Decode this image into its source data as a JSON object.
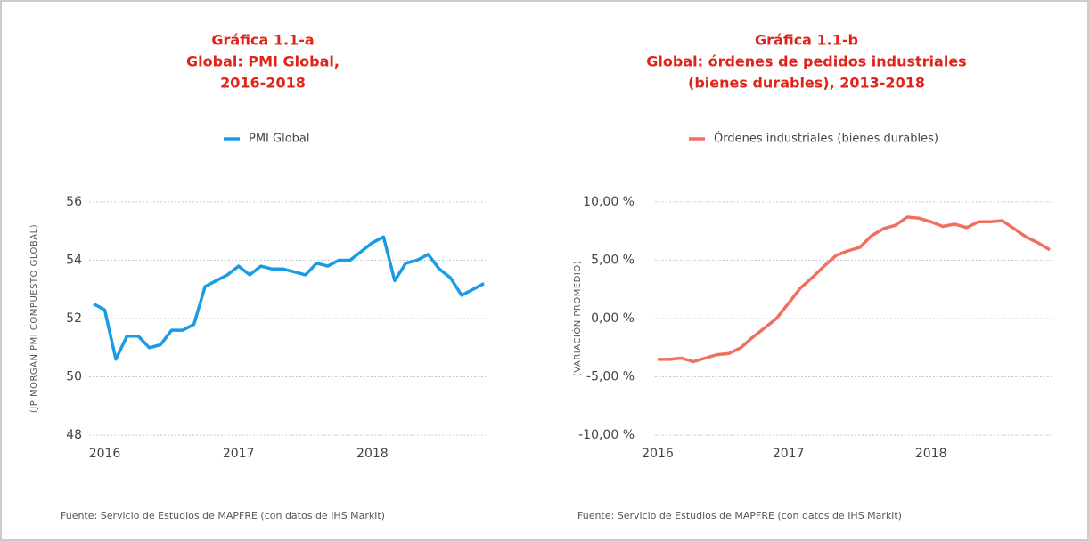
{
  "chart_data": [
    {
      "type": "line",
      "title": [
        "Gráfica 1.1-a",
        "Global: PMI Global,",
        "2016-2018"
      ],
      "y_label": "(JP MORGAN PMI COMPUESTO GLOBAL)",
      "categories": [
        null,
        "2016",
        null,
        null,
        null,
        null,
        null,
        null,
        null,
        null,
        null,
        null,
        null,
        "2017",
        null,
        null,
        null,
        null,
        null,
        null,
        null,
        null,
        null,
        null,
        null,
        "2018",
        null,
        null,
        null,
        null,
        null,
        null,
        null,
        null,
        null,
        null
      ],
      "series": [
        {
          "name": "PMI Global",
          "color": "#1a9be6",
          "values": [
            52.5,
            52.3,
            50.6,
            51.4,
            51.4,
            51.0,
            51.1,
            51.6,
            51.6,
            51.8,
            53.1,
            53.3,
            53.5,
            53.8,
            53.5,
            53.8,
            53.7,
            53.7,
            53.6,
            53.5,
            53.9,
            53.8,
            54.0,
            54.0,
            54.3,
            54.6,
            54.8,
            53.3,
            53.9,
            54.0,
            54.2,
            53.7,
            53.4,
            52.8,
            53.0,
            53.2
          ]
        }
      ],
      "ylim": [
        48,
        56
      ],
      "yticks": [
        48,
        50,
        52,
        54,
        56
      ],
      "grid": true,
      "note": "Fuente: Servicio de Estudios de MAPFRE (con datos de IHS Markit)"
    },
    {
      "type": "line",
      "title": [
        "Gráfica 1.1-b",
        "Global: órdenes de pedidos industriales",
        "(bienes durables), 2013-2018"
      ],
      "y_label": "(VARIACIÓN PROMEDIO)",
      "categories": [
        "2016",
        null,
        null,
        null,
        null,
        null,
        null,
        null,
        null,
        null,
        null,
        "2017",
        null,
        null,
        null,
        null,
        null,
        null,
        null,
        null,
        null,
        null,
        null,
        "2018",
        null,
        null,
        null,
        null,
        null,
        null,
        null,
        null,
        null,
        null
      ],
      "series": [
        {
          "name": "Órdenes industriales (bienes durables)",
          "color": "#f07060",
          "values": [
            -3.5,
            -3.5,
            -3.4,
            -3.7,
            -3.4,
            -3.1,
            -3.0,
            -2.5,
            -1.6,
            -0.8,
            0.0,
            1.3,
            2.6,
            3.5,
            4.5,
            5.4,
            5.8,
            6.1,
            7.1,
            7.7,
            8.0,
            8.7,
            8.6,
            8.3,
            7.9,
            8.1,
            7.8,
            8.3,
            8.3,
            8.4,
            7.7,
            7.0,
            6.5,
            5.9
          ]
        }
      ],
      "ylim": [
        -10,
        10
      ],
      "yticks": [
        {
          "value": -10,
          "label": "-10,00 %"
        },
        {
          "value": -5,
          "label": "-5,00 %"
        },
        {
          "value": 0,
          "label": "0,00 %"
        },
        {
          "value": 5,
          "label": "5,00 %"
        },
        {
          "value": 10,
          "label": "10,00 %"
        }
      ],
      "grid": true,
      "note": "Fuente: Servicio de Estudios de MAPFRE (con datos de IHS Markit)"
    }
  ]
}
